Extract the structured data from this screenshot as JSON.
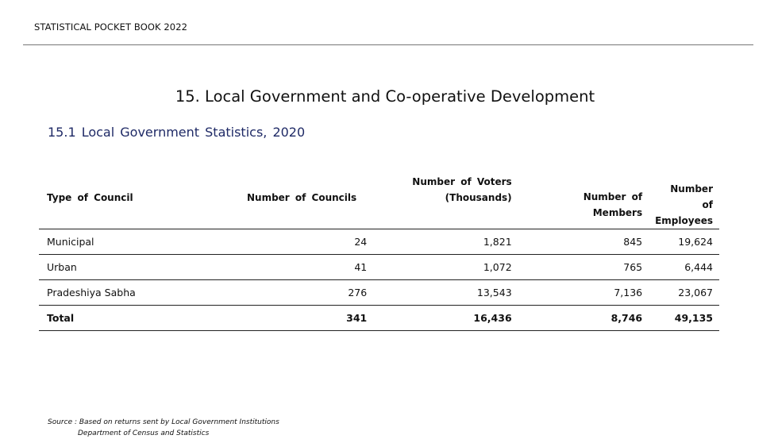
{
  "header": {
    "title": "STATISTICAL POCKET BOOK 2022"
  },
  "chapter": {
    "title": "15. Local Government and Co-operative Development"
  },
  "section": {
    "title": "15.1 Local  Government  Statistics, 2020"
  },
  "table": {
    "headers": {
      "type": "Type of  Council",
      "councils": "Number  of Councils",
      "voters_l1": "Number of  Voters",
      "voters_l2": "(Thousands)",
      "members_l1": "Number  of",
      "members_l2": "Members",
      "employees_l1": "Number  of",
      "employees_l2": "Employees"
    },
    "rows": [
      {
        "type": "Municipal",
        "councils": "24",
        "voters": "1,821",
        "members": "845",
        "employees": "19,624"
      },
      {
        "type": "Urban",
        "councils": "41",
        "voters": "1,072",
        "members": "765",
        "employees": "6,444"
      },
      {
        "type": "Pradeshiya  Sabha",
        "councils": "276",
        "voters": "13,543",
        "members": "7,136",
        "employees": "23,067"
      }
    ],
    "total": {
      "type": "Total",
      "councils": "341",
      "voters": "16,436",
      "members": "8,746",
      "employees": "49,135"
    }
  },
  "source": {
    "line1": "Source : Based on returns sent by Local Government Institutions",
    "line2": "Department of Census and Statistics"
  }
}
